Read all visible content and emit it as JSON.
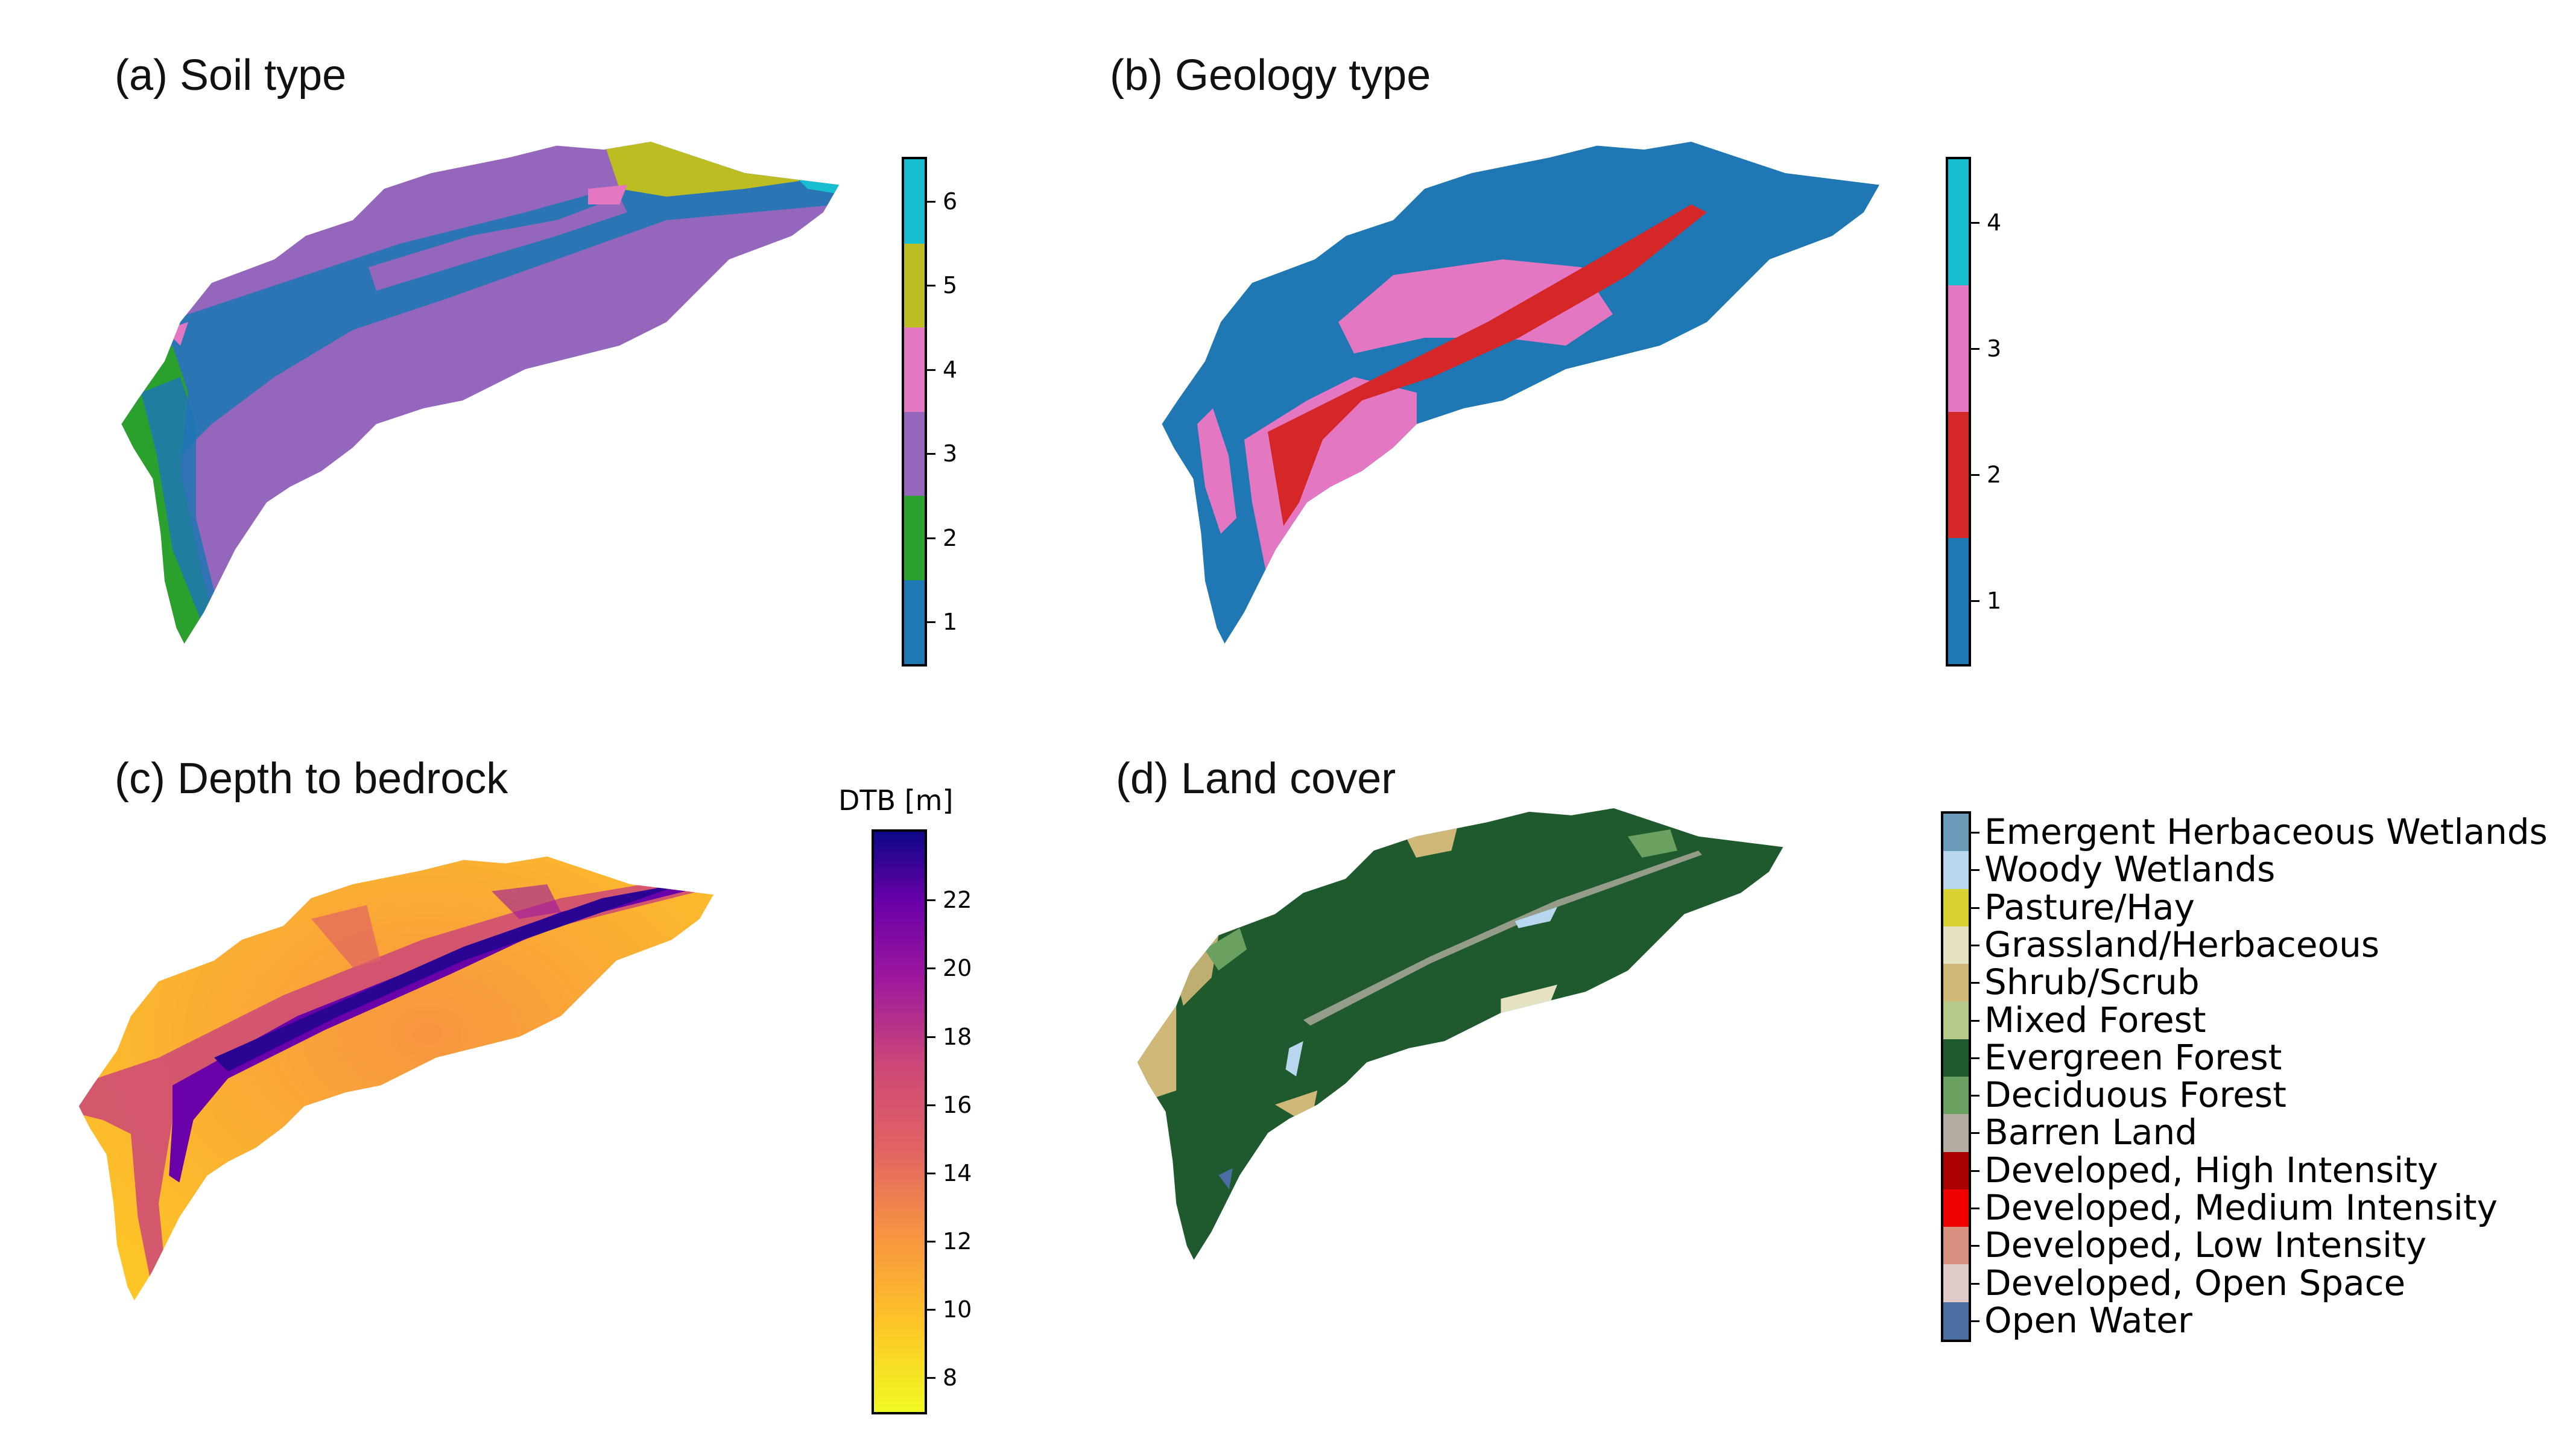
{
  "panels": {
    "a": {
      "title": "(a)  Soil type",
      "colorbar": {
        "ticks": [
          "1",
          "2",
          "3",
          "4",
          "5",
          "6"
        ],
        "colors": [
          "#1f77b4",
          "#2ca02c",
          "#9467bd",
          "#e377c2",
          "#bcbd22",
          "#17becf"
        ]
      }
    },
    "b": {
      "title": "(b)  Geology type",
      "colorbar": {
        "ticks": [
          "1",
          "2",
          "3",
          "4"
        ],
        "colors": [
          "#1f77b4",
          "#d62728",
          "#e377c2",
          "#17becf"
        ]
      }
    },
    "c": {
      "title": "(c) Depth to bedrock",
      "colorbar": {
        "title": "DTB [m]",
        "ticks": [
          "8",
          "10",
          "12",
          "14",
          "16",
          "18",
          "20",
          "22"
        ],
        "range": [
          7,
          24
        ]
      }
    },
    "d": {
      "title": "(d)  Land cover"
    }
  },
  "legend": [
    {
      "label": "Emergent Herbaceous Wetlands",
      "color": "#6a9bb8"
    },
    {
      "label": "Woody Wetlands",
      "color": "#b8d6ee"
    },
    {
      "label": "Pasture/Hay",
      "color": "#d8d232"
    },
    {
      "label": "Grassland/Herbaceous",
      "color": "#e4e2c0"
    },
    {
      "label": "Shrub/Scrub",
      "color": "#cfb878"
    },
    {
      "label": "Mixed Forest",
      "color": "#b5c98a"
    },
    {
      "label": "Evergreen Forest",
      "color": "#1e5a2e"
    },
    {
      "label": "Deciduous Forest",
      "color": "#6aa060"
    },
    {
      "label": "Barren Land",
      "color": "#b3aca0"
    },
    {
      "label": "Developed, High Intensity",
      "color": "#aa0000"
    },
    {
      "label": "Developed, Medium Intensity",
      "color": "#ee0000"
    },
    {
      "label": "Developed, Low Intensity",
      "color": "#d99282"
    },
    {
      "label": "Developed, Open Space",
      "color": "#decac9"
    },
    {
      "label": "Open Water",
      "color": "#4a6ea1"
    }
  ]
}
